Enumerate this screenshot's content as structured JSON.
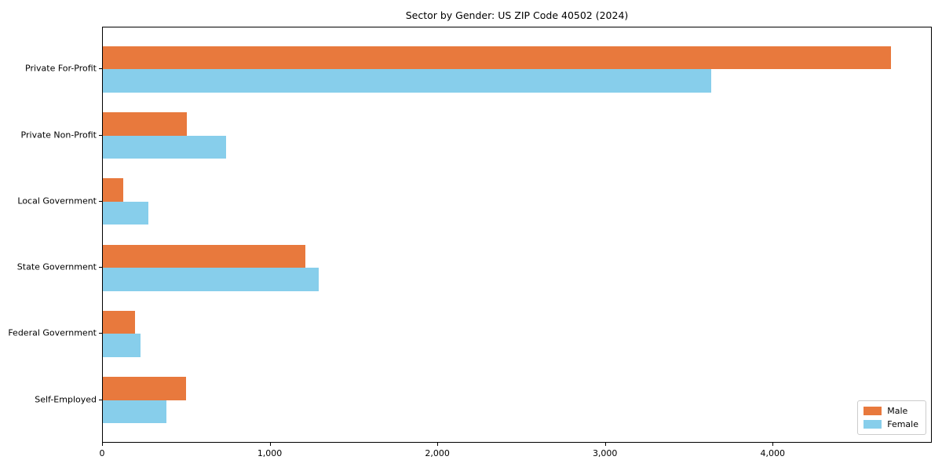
{
  "title": "Sector by Gender: US ZIP Code 40502 (2024)",
  "colors": {
    "male": "#E8793D",
    "female": "#87CEEB",
    "axis": "#000000",
    "legend_border": "#cccccc",
    "background": "#ffffff"
  },
  "chart_data": {
    "type": "bar",
    "orientation": "horizontal",
    "title": "Sector by Gender: US ZIP Code 40502 (2024)",
    "xlabel": "",
    "ylabel": "",
    "categories": [
      "Private For-Profit",
      "Private Non-Profit",
      "Local Government",
      "State Government",
      "Federal Government",
      "Self-Employed"
    ],
    "series": [
      {
        "name": "Male",
        "color": "#E8793D",
        "values": [
          4700,
          500,
          120,
          1210,
          190,
          495
        ]
      },
      {
        "name": "Female",
        "color": "#87CEEB",
        "values": [
          3630,
          735,
          270,
          1290,
          225,
          380
        ]
      }
    ],
    "xlim": [
      0,
      4940
    ],
    "xticks": [
      0,
      1000,
      2000,
      3000,
      4000
    ],
    "xtick_labels": [
      "0",
      "1,000",
      "2,000",
      "3,000",
      "4,000"
    ],
    "grid": false,
    "legend_position": "lower right"
  },
  "legend": {
    "items": [
      {
        "label": "Male",
        "color": "#E8793D"
      },
      {
        "label": "Female",
        "color": "#87CEEB"
      }
    ]
  }
}
